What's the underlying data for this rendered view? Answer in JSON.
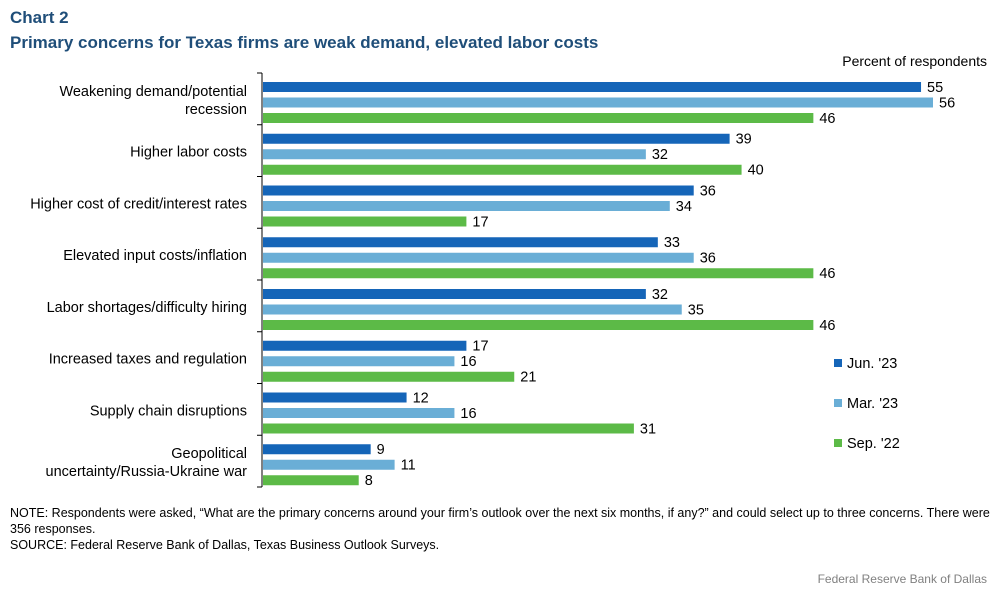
{
  "chart_number": "Chart 2",
  "title": "Primary concerns for Texas firms are weak demand, elevated labor costs",
  "unit_label": "Percent of respondents",
  "note": "NOTE: Respondents were asked, “What are the primary concerns around your firm’s outlook over the next six months, if any?” and could select up to three concerns. There were 356 responses.",
  "source": "SOURCE: Federal Reserve Bank of Dallas, Texas Business Outlook Surveys.",
  "credit": "Federal Reserve Bank of Dallas",
  "chart_data": {
    "type": "bar",
    "orientation": "horizontal",
    "categories": [
      "Weakening demand/potential recession",
      "Higher labor costs",
      "Higher cost of credit/interest rates",
      "Elevated input costs/inflation",
      "Labor shortages/difficulty hiring",
      "Increased taxes and regulation",
      "Supply chain disruptions",
      "Geopolitical uncertainty/Russia-Ukraine war"
    ],
    "series": [
      {
        "name": "Jun. '23",
        "color": "#1565b8",
        "values": [
          55,
          39,
          36,
          33,
          32,
          17,
          12,
          9
        ]
      },
      {
        "name": "Mar. '23",
        "color": "#6aaed6",
        "values": [
          56,
          32,
          34,
          36,
          35,
          16,
          16,
          11
        ]
      },
      {
        "name": "Sep. '22",
        "color": "#5cba47",
        "values": [
          46,
          40,
          17,
          46,
          46,
          21,
          31,
          8
        ]
      }
    ],
    "xlim": [
      0,
      60
    ],
    "grid": false,
    "legend": "right"
  }
}
